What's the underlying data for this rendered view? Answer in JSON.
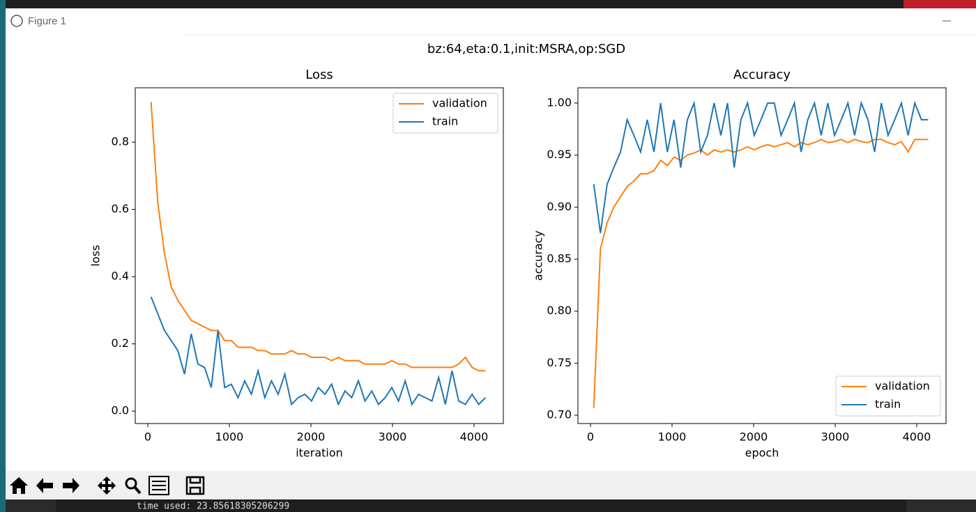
{
  "window_title": "Figure 1",
  "suptitle": "bz:64,eta:0.1,init:MSRA,op:SGD",
  "console": {
    "text": "time used: 23.85618305206299"
  },
  "chart_data": [
    {
      "type": "line",
      "title": "Loss",
      "x_label": "iteration",
      "y_label": "loss",
      "x": [
        40,
        122,
        204,
        286,
        368,
        450,
        532,
        614,
        696,
        778,
        860,
        942,
        1024,
        1106,
        1188,
        1270,
        1352,
        1434,
        1516,
        1598,
        1680,
        1762,
        1844,
        1926,
        2008,
        2090,
        2172,
        2254,
        2336,
        2418,
        2500,
        2582,
        2664,
        2746,
        2828,
        2910,
        2992,
        3074,
        3156,
        3238,
        3320,
        3402,
        3484,
        3566,
        3648,
        3730,
        3812,
        3894,
        3976,
        4058,
        4140
      ],
      "series": [
        {
          "name": "validation",
          "color": "#ff7f0e",
          "values": [
            0.92,
            0.62,
            0.47,
            0.37,
            0.33,
            0.3,
            0.27,
            0.26,
            0.25,
            0.24,
            0.24,
            0.21,
            0.21,
            0.19,
            0.19,
            0.19,
            0.18,
            0.18,
            0.17,
            0.17,
            0.17,
            0.18,
            0.17,
            0.17,
            0.16,
            0.16,
            0.16,
            0.15,
            0.16,
            0.15,
            0.15,
            0.15,
            0.14,
            0.14,
            0.14,
            0.14,
            0.15,
            0.14,
            0.14,
            0.13,
            0.13,
            0.13,
            0.13,
            0.13,
            0.13,
            0.13,
            0.14,
            0.16,
            0.13,
            0.12,
            0.12
          ]
        },
        {
          "name": "train",
          "color": "#1f77b4",
          "values": [
            0.34,
            0.29,
            0.24,
            0.21,
            0.18,
            0.11,
            0.23,
            0.14,
            0.13,
            0.07,
            0.24,
            0.07,
            0.08,
            0.04,
            0.09,
            0.05,
            0.12,
            0.04,
            0.09,
            0.05,
            0.11,
            0.02,
            0.04,
            0.05,
            0.03,
            0.07,
            0.05,
            0.08,
            0.02,
            0.06,
            0.04,
            0.09,
            0.03,
            0.06,
            0.02,
            0.04,
            0.07,
            0.03,
            0.09,
            0.02,
            0.05,
            0.04,
            0.03,
            0.1,
            0.02,
            0.12,
            0.03,
            0.02,
            0.05,
            0.02,
            0.04
          ]
        }
      ],
      "xlim": [
        -154,
        4359
      ],
      "ylim": [
        -0.037,
        0.962
      ],
      "xticks": [
        0,
        1000,
        2000,
        3000,
        4000
      ],
      "yticks": [
        {
          "value": 0,
          "label": "0.0"
        },
        0.2,
        0.4,
        0.6,
        0.8
      ],
      "legend": "upper right"
    },
    {
      "type": "line",
      "title": "Accuracy",
      "x_label": "epoch",
      "y_label": "accuracy",
      "x": [
        40,
        122,
        204,
        286,
        368,
        450,
        532,
        614,
        696,
        778,
        860,
        942,
        1024,
        1106,
        1188,
        1270,
        1352,
        1434,
        1516,
        1598,
        1680,
        1762,
        1844,
        1926,
        2008,
        2090,
        2172,
        2254,
        2336,
        2418,
        2500,
        2582,
        2664,
        2746,
        2828,
        2910,
        2992,
        3074,
        3156,
        3238,
        3320,
        3402,
        3484,
        3566,
        3648,
        3730,
        3812,
        3894,
        3976,
        4058,
        4140
      ],
      "series": [
        {
          "name": "validation",
          "color": "#ff7f0e",
          "values": [
            0.707,
            0.86,
            0.885,
            0.9,
            0.91,
            0.92,
            0.925,
            0.932,
            0.932,
            0.935,
            0.945,
            0.94,
            0.948,
            0.945,
            0.95,
            0.952,
            0.955,
            0.95,
            0.955,
            0.953,
            0.955,
            0.953,
            0.955,
            0.958,
            0.955,
            0.958,
            0.96,
            0.958,
            0.96,
            0.962,
            0.958,
            0.962,
            0.96,
            0.962,
            0.965,
            0.962,
            0.963,
            0.965,
            0.962,
            0.965,
            0.963,
            0.962,
            0.965,
            0.965,
            0.962,
            0.96,
            0.963,
            0.953,
            0.965,
            0.965,
            0.965
          ]
        },
        {
          "name": "train",
          "color": "#1f77b4",
          "values": [
            0.922,
            0.875,
            0.922,
            0.938,
            0.953,
            0.984,
            0.969,
            0.953,
            0.984,
            0.953,
            1.0,
            0.953,
            0.984,
            0.938,
            0.984,
            1.0,
            0.953,
            0.969,
            1.0,
            0.969,
            1.0,
            0.938,
            0.984,
            1.0,
            0.969,
            0.984,
            1.0,
            1.0,
            0.969,
            0.984,
            1.0,
            0.953,
            0.984,
            1.0,
            0.969,
            1.0,
            0.969,
            0.984,
            1.0,
            0.969,
            1.0,
            0.984,
            0.953,
            1.0,
            0.969,
            0.984,
            1.0,
            0.969,
            1.0,
            0.984,
            0.984
          ]
        }
      ],
      "xlim": [
        -154,
        4359
      ],
      "ylim": [
        0.692,
        1.0147
      ],
      "xticks": [
        0,
        1000,
        2000,
        3000,
        4000
      ],
      "yticks": [
        {
          "value": 0.7,
          "label": "0.70"
        },
        0.75,
        {
          "value": 0.8,
          "label": "0.80"
        },
        0.85,
        {
          "value": 0.9,
          "label": "0.90"
        },
        0.95,
        {
          "value": 1.0,
          "label": "1.00"
        }
      ],
      "legend": "lower right"
    }
  ]
}
